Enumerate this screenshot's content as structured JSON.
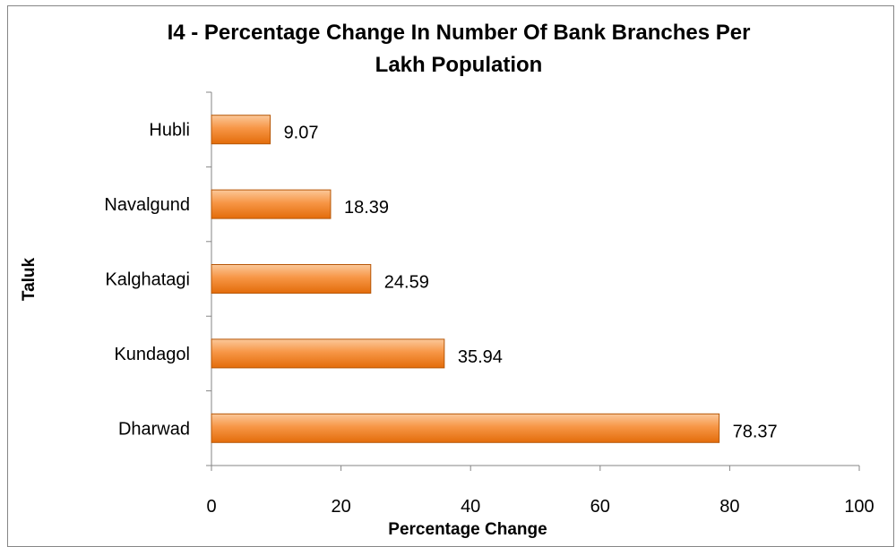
{
  "chart_data": {
    "type": "bar",
    "orientation": "horizontal",
    "title_lines": [
      "I4 - Percentage Change In Number Of Bank Branches Per",
      "Lakh Population"
    ],
    "xlabel": "Percentage Change",
    "ylabel": "Taluk",
    "categories": [
      "Hubli",
      "Navalgund",
      "Kalghatagi",
      "Kundagol",
      "Dharwad"
    ],
    "values": [
      9.07,
      18.39,
      24.59,
      35.94,
      78.37
    ],
    "data_labels": [
      "9.07",
      "18.39",
      "24.59",
      "35.94",
      "78.37"
    ],
    "xlim": [
      0,
      100
    ],
    "xticks": [
      "0",
      "20",
      "40",
      "60",
      "80",
      "100"
    ],
    "grid": false,
    "legend": "none",
    "colors": {
      "bar_top": "#FBC89A",
      "bar_mid": "#F79646",
      "bar_bottom": "#E36C0A",
      "bar_stroke": "#B65708",
      "axis": "#868686"
    }
  }
}
